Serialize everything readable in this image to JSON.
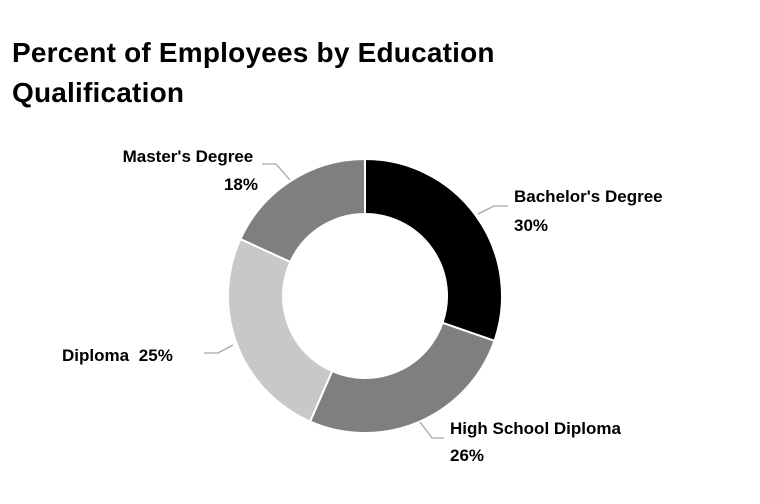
{
  "chart_data": {
    "type": "pie",
    "title": "Percent of Employees by Education Qualification",
    "style": "donut",
    "slices": [
      {
        "label": "Bachelor's Degree",
        "value": 30,
        "value_label": "30%",
        "color": "#000000"
      },
      {
        "label": "High School Diploma",
        "value": 26,
        "value_label": "26%",
        "color": "#7f7f7f"
      },
      {
        "label": "Diploma",
        "value": 25,
        "value_label": "25%",
        "color": "#c8c8c8"
      },
      {
        "label": "Master's Degree",
        "value": 18,
        "value_label": "18%",
        "color": "#7f7f7f"
      }
    ],
    "legend": "none",
    "leader_line_color": "#a6a6a6"
  }
}
